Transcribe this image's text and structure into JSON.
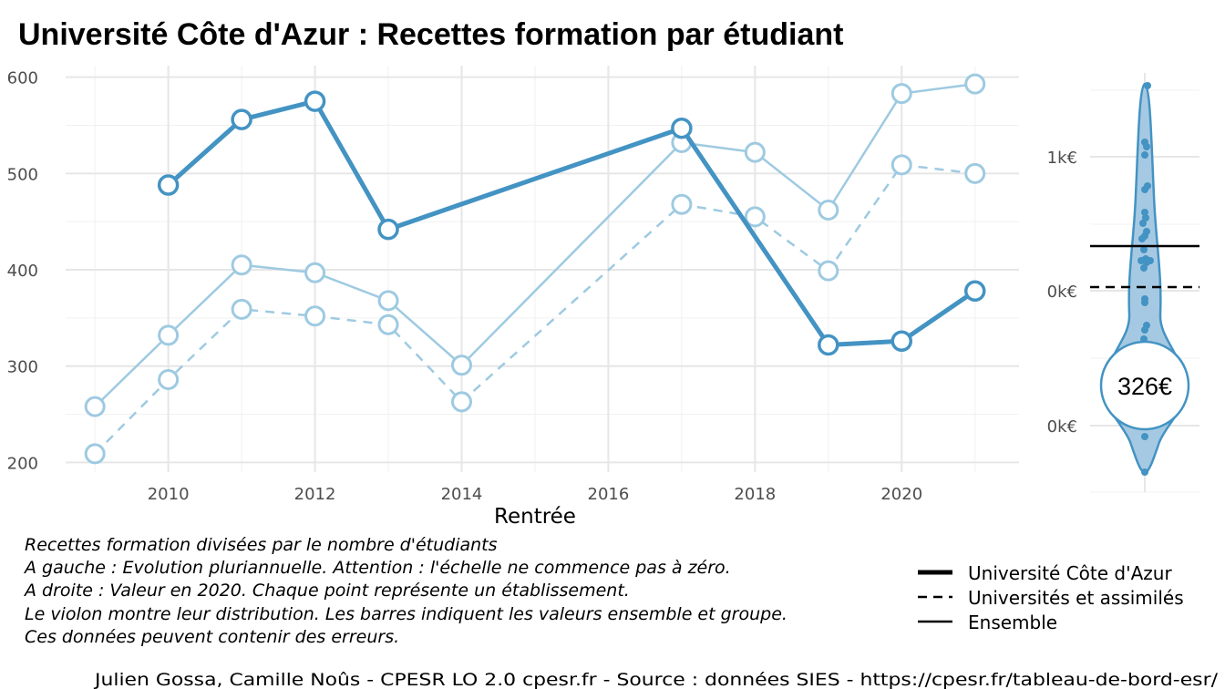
{
  "title": "Université Côte d'Azur  :  Recettes formation par étudiant",
  "chart_data": {
    "type": "line",
    "xlabel": "Rentrée",
    "ylabel": "",
    "xlim": [
      2008.6,
      2021.6
    ],
    "ylim": [
      190,
      612
    ],
    "x_ticks": [
      2010,
      2012,
      2014,
      2016,
      2018,
      2020
    ],
    "x_tick_labels": [
      "2010",
      "2012",
      "2014",
      "2016",
      "2018",
      "2020"
    ],
    "y_ticks": [
      200,
      300,
      400,
      500,
      600
    ],
    "y_tick_labels": [
      "200",
      "300",
      "400",
      "500",
      "600"
    ],
    "grid": true,
    "series": [
      {
        "name": "Université Côte d'Azur",
        "line_style": "solid-thick",
        "color": "#4393c3",
        "segments": [
          [
            [
              2010,
              488
            ],
            [
              2011,
              556
            ],
            [
              2012,
              575
            ],
            [
              2013,
              442
            ],
            [
              2017,
              547
            ],
            [
              2019,
              322
            ],
            [
              2020,
              326
            ],
            [
              2021,
              378
            ]
          ]
        ]
      },
      {
        "name": "Universités et assimilés",
        "line_style": "dashed",
        "color": "#9ecae1",
        "segments": [
          [
            [
              2009,
              209
            ],
            [
              2010,
              286
            ],
            [
              2011,
              359
            ],
            [
              2012,
              352
            ],
            [
              2013,
              343
            ],
            [
              2014,
              263
            ],
            [
              2017,
              468
            ],
            [
              2018,
              455
            ],
            [
              2019,
              399
            ],
            [
              2020,
              509
            ],
            [
              2021,
              500
            ]
          ]
        ]
      },
      {
        "name": "Ensemble",
        "line_style": "solid-thin",
        "color": "#9ecae1",
        "segments": [
          [
            [
              2009,
              258
            ],
            [
              2010,
              332
            ],
            [
              2011,
              405
            ],
            [
              2012,
              397
            ],
            [
              2013,
              368
            ],
            [
              2014,
              301
            ],
            [
              2017,
              532
            ],
            [
              2018,
              522
            ],
            [
              2019,
              462
            ],
            [
              2020,
              583
            ],
            [
              2021,
              593
            ]
          ]
        ]
      }
    ],
    "violin": {
      "y_tick_labels": [
        "1k€",
        "0k€",
        "0k€"
      ],
      "color": "#4393c3",
      "fill_color": "#a6c9e3",
      "badge_value": "326€",
      "reference_lines": [
        {
          "name": "Ensemble",
          "style": "solid"
        },
        {
          "name": "Universités et assimilés",
          "style": "dashed"
        }
      ]
    },
    "legend": {
      "placement": "bottom-right",
      "items": [
        {
          "label": "Université Côte d'Azur",
          "style": "solid-thick"
        },
        {
          "label": "Universités et assimilés",
          "style": "dashed"
        },
        {
          "label": "Ensemble",
          "style": "solid"
        }
      ]
    }
  },
  "notes": [
    "Recettes formation divisées par le nombre d'étudiants",
    "A gauche : Evolution pluriannuelle. Attention : l'échelle ne commence pas à zéro.",
    "A droite : Valeur en 2020. Chaque point représente un établissement.",
    "Le violon montre leur distribution. Les barres indiquent les valeurs ensemble et groupe.",
    "Ces données peuvent contenir des erreurs."
  ],
  "caption": "Julien Gossa, Camille Noûs - CPESR LO 2.0 cpesr.fr - Source : données SIES - https://cpesr.fr/tableau-de-bord-esr/"
}
